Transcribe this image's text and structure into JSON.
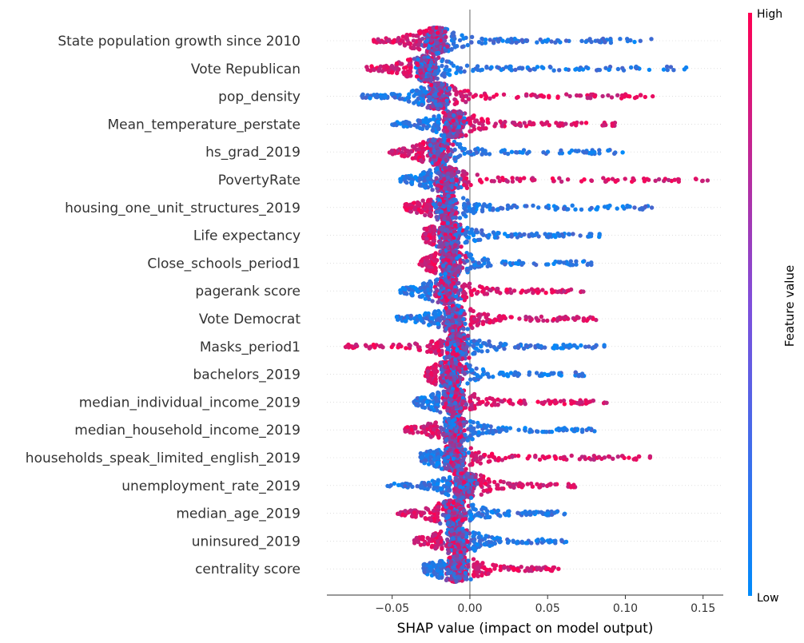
{
  "chart_data": {
    "type": "scatter",
    "subtype": "shap-beeswarm",
    "title": "",
    "xlabel": "SHAP value (impact on model output)",
    "ylabel": "",
    "xlim": [
      -0.092,
      0.163
    ],
    "xticks": [
      -0.05,
      0.0,
      0.05,
      0.1,
      0.15
    ],
    "xtick_labels": [
      "−0.05",
      "0.00",
      "0.05",
      "0.10",
      "0.15"
    ],
    "colorbar": {
      "label": "Feature value",
      "high_label": "High",
      "low_label": "Low",
      "low_color": "#008bfb",
      "high_color": "#ff0052"
    },
    "features": [
      {
        "name": "State population growth since 2010",
        "min": -0.062,
        "max": 0.12,
        "center": -0.022,
        "low_side": "positive"
      },
      {
        "name": "Vote Republican",
        "min": -0.068,
        "max": 0.14,
        "center": -0.028,
        "low_side": "positive"
      },
      {
        "name": "pop_density",
        "min": -0.07,
        "max": 0.12,
        "center": -0.02,
        "low_side": "negative"
      },
      {
        "name": "Mean_temperature_perstate",
        "min": -0.05,
        "max": 0.095,
        "center": -0.01,
        "low_side": "negative"
      },
      {
        "name": "hs_grad_2019",
        "min": -0.053,
        "max": 0.1,
        "center": -0.02,
        "low_side": "positive"
      },
      {
        "name": "PovertyRate",
        "min": -0.045,
        "max": 0.153,
        "center": -0.015,
        "low_side": "negative"
      },
      {
        "name": "housing_one_unit_structures_2019",
        "min": -0.042,
        "max": 0.123,
        "center": -0.015,
        "low_side": "positive"
      },
      {
        "name": "Life expectancy",
        "min": -0.03,
        "max": 0.085,
        "center": -0.013,
        "low_side": "positive"
      },
      {
        "name": "Close_schools_period1",
        "min": -0.033,
        "max": 0.081,
        "center": -0.012,
        "low_side": "positive"
      },
      {
        "name": "pagerank score",
        "min": -0.045,
        "max": 0.073,
        "center": -0.015,
        "low_side": "negative"
      },
      {
        "name": "Vote Democrat",
        "min": -0.048,
        "max": 0.083,
        "center": -0.01,
        "low_side": "negative"
      },
      {
        "name": "Masks_period1",
        "min": -0.08,
        "max": 0.088,
        "center": -0.008,
        "low_side": "positive"
      },
      {
        "name": "bachelors_2019",
        "min": -0.029,
        "max": 0.075,
        "center": -0.012,
        "low_side": "positive"
      },
      {
        "name": "median_individual_income_2019",
        "min": -0.037,
        "max": 0.088,
        "center": -0.01,
        "low_side": "negative"
      },
      {
        "name": "median_household_income_2019",
        "min": -0.042,
        "max": 0.082,
        "center": -0.01,
        "low_side": "positive"
      },
      {
        "name": "households_speak_limited_english_2019",
        "min": -0.032,
        "max": 0.118,
        "center": -0.01,
        "low_side": "negative"
      },
      {
        "name": "unemployment_rate_2019",
        "min": -0.053,
        "max": 0.069,
        "center": -0.003,
        "low_side": "negative"
      },
      {
        "name": "median_age_2019",
        "min": -0.048,
        "max": 0.062,
        "center": -0.01,
        "low_side": "positive"
      },
      {
        "name": "uninsured_2019",
        "min": -0.036,
        "max": 0.062,
        "center": -0.008,
        "low_side": "positive"
      },
      {
        "name": "centrality score",
        "min": -0.03,
        "max": 0.058,
        "center": -0.008,
        "low_side": "negative"
      }
    ]
  }
}
